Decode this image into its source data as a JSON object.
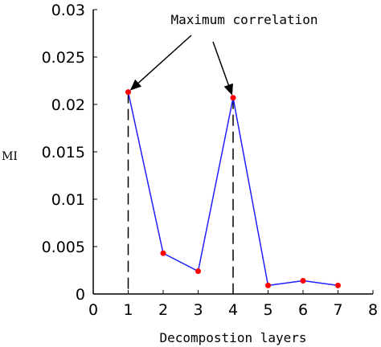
{
  "chart_data": {
    "type": "line",
    "xlabel": "Decompostion layers",
    "ylabel": "MI",
    "xlim": [
      0,
      8
    ],
    "ylim": [
      0,
      0.03
    ],
    "x_ticks": [
      "0",
      "1",
      "2",
      "3",
      "4",
      "5",
      "6",
      "7",
      "8"
    ],
    "y_ticks": [
      "0",
      "0.005",
      "0.01",
      "0.015",
      "0.02",
      "0.025",
      "0.03"
    ],
    "grid": false,
    "series": [
      {
        "x": [
          1,
          2,
          3,
          4,
          5,
          6,
          7
        ],
        "values": [
          0.0213,
          0.0043,
          0.0024,
          0.0207,
          0.0009,
          0.0014,
          0.0009
        ],
        "line_color": "#1f1fff",
        "marker_color": "#ff0000"
      }
    ],
    "annotation": {
      "text": "Maximum correlation",
      "targets_x": [
        1,
        4
      ]
    }
  }
}
